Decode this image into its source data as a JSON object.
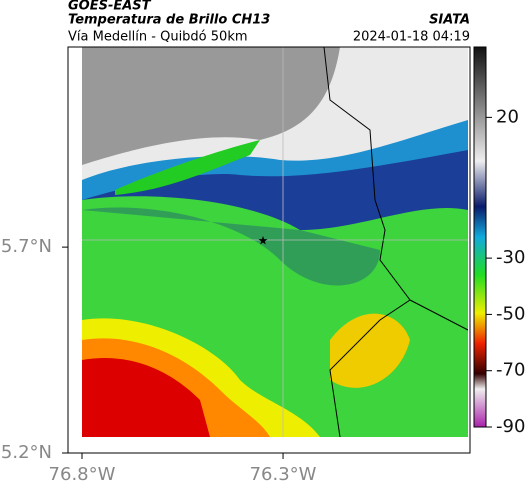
{
  "header": {
    "source": "GOES-EAST",
    "title": "Temperatura de Brillo CH13",
    "org": "SIATA",
    "route": "Vía Medellín - Quibdó 50km",
    "datetime": "2024-01-18 04:19"
  },
  "map": {
    "xlim": [
      -76.8,
      -75.84
    ],
    "ylim": [
      5.2,
      6.186
    ],
    "xticks": [
      {
        "value": -76.8,
        "label": "76.8°W"
      },
      {
        "value": -76.3,
        "label": "76.3°W"
      }
    ],
    "yticks": [
      {
        "value": 5.7,
        "label": "5.7°N"
      },
      {
        "value": 5.2,
        "label": "5.2°N"
      }
    ]
  },
  "colorbar": {
    "lim": [
      45,
      -90
    ],
    "ticks": [
      20,
      -30,
      -50,
      -70,
      -90
    ]
  }
}
